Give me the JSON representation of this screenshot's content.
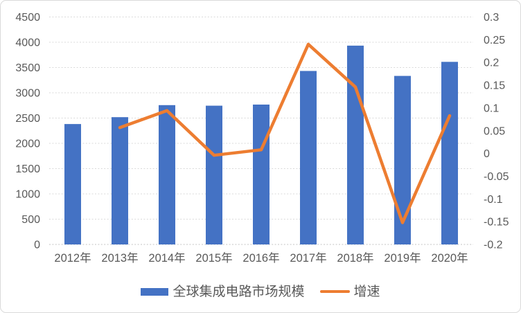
{
  "chart_data": {
    "type": "combo",
    "title": "",
    "categories": [
      "2012年",
      "2013年",
      "2014年",
      "2015年",
      "2016年",
      "2017年",
      "2018年",
      "2019年",
      "2020年"
    ],
    "series": [
      {
        "name": "全球集成电路市场规模",
        "chart": "bar",
        "axis": "left",
        "color": "#4472C4",
        "values": [
          2382,
          2518,
          2756,
          2745,
          2767,
          3432,
          3933,
          3334,
          3612
        ]
      },
      {
        "name": "增速",
        "chart": "line",
        "axis": "right",
        "color": "#ED7D31",
        "values": [
          null,
          0.057,
          0.094,
          -0.004,
          0.008,
          0.24,
          0.146,
          -0.152,
          0.083
        ]
      }
    ],
    "left_axis": {
      "min": 0,
      "max": 4500,
      "step": 500,
      "tick_labels": [
        "0",
        "500",
        "1000",
        "1500",
        "2000",
        "2500",
        "3000",
        "3500",
        "4000",
        "4500"
      ]
    },
    "right_axis": {
      "min": -0.2,
      "max": 0.3,
      "step": 0.05,
      "tick_labels": [
        "-0.2",
        "-0.15",
        "-0.1",
        "-0.05",
        "0",
        "0.05",
        "0.1",
        "0.15",
        "0.2",
        "0.25",
        "0.3"
      ]
    },
    "grid": true,
    "legend_position": "bottom",
    "styles": {
      "grid_color": "#D9D9D9",
      "axis_line_color": "#C3C3C3",
      "axis_text_color": "#595959",
      "border_color": "#D9D9D9",
      "background": "#FFFFFF"
    }
  }
}
